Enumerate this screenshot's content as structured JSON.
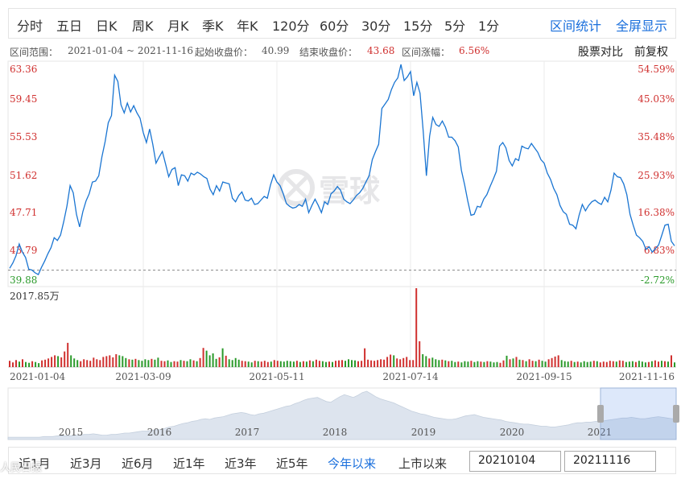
{
  "tabs": {
    "left": [
      "分时",
      "五日",
      "日K",
      "周K",
      "月K",
      "季K",
      "年K",
      "120分",
      "60分",
      "30分",
      "15分",
      "5分",
      "1分"
    ],
    "range_stats": "区间统计",
    "fullscreen": "全屏显示"
  },
  "info": {
    "range_label": "区间范围：",
    "range_value": "2021-01-04 ~ 2021-11-16",
    "start_label": "起始收盘价：",
    "start_value": "40.99",
    "end_label": "结束收盘价：",
    "end_value": "43.68",
    "change_label": "区间涨幅：",
    "change_value": "6.56%",
    "compare": "股票对比",
    "adjust": "前复权"
  },
  "watermark_text": "雪球",
  "bottom": {
    "ranges": [
      "近1月",
      "近3月",
      "近6月",
      "近1年",
      "近3年",
      "近5年",
      "今年以来",
      "上市以来"
    ],
    "active_range": "今年以来",
    "start_date": "20210104",
    "end_date": "20211116",
    "corner_watermark": "人民日报"
  },
  "colors": {
    "line": "#1a75d2",
    "up": "#d0302f",
    "down": "#2a9a2a",
    "accent": "#1a6fdc"
  },
  "chart_data": {
    "type": "line",
    "price": {
      "y_ticks": [
        "63.36",
        "59.45",
        "55.53",
        "51.62",
        "47.71",
        "43.79",
        "39.88"
      ],
      "y_range": [
        39.88,
        63.36
      ],
      "pct_ticks": [
        "54.59%",
        "45.03%",
        "35.48%",
        "25.93%",
        "16.38%",
        "6.83%",
        "-2.72%"
      ],
      "base_close": 40.99,
      "x_labels": [
        "2021-01-04",
        "2021-03-09",
        "2021-05-11",
        "2021-07-14",
        "2021-09-15",
        "2021-11-16"
      ],
      "values": [
        41.2,
        41.8,
        42.6,
        43.9,
        43.0,
        42.4,
        41.1,
        41.0,
        40.7,
        40.5,
        41.3,
        42.0,
        42.8,
        43.5,
        44.6,
        44.3,
        44.9,
        46.4,
        48.1,
        50.4,
        49.6,
        47.2,
        45.8,
        47.5,
        48.7,
        49.5,
        50.8,
        50.9,
        51.5,
        53.6,
        55.3,
        57.4,
        58.2,
        62.7,
        62.0,
        59.4,
        58.5,
        59.6,
        58.6,
        59.3,
        58.5,
        57.9,
        56.3,
        55.2,
        56.7,
        55.0,
        52.9,
        53.6,
        54.2,
        52.8,
        51.4,
        52.2,
        52.4,
        50.4,
        51.6,
        51.5,
        50.9,
        51.8,
        51.6,
        51.9,
        51.7,
        51.4,
        51.2,
        50.0,
        49.4,
        50.4,
        49.8,
        50.8,
        50.7,
        50.6,
        49.0,
        48.6,
        49.3,
        49.7,
        48.8,
        48.7,
        49.0,
        48.3,
        48.4,
        48.8,
        49.2,
        49.0,
        50.5,
        51.6,
        50.8,
        50.4,
        49.5,
        48.4,
        48.1,
        47.9,
        48.0,
        48.3,
        48.1,
        48.9,
        47.4,
        48.2,
        48.9,
        48.2,
        47.4,
        48.6,
        48.3,
        49.5,
        49.8,
        50.3,
        49.9,
        48.9,
        48.6,
        48.4,
        48.8,
        49.3,
        49.6,
        50.1,
        50.8,
        51.5,
        53.3,
        54.2,
        55.0,
        59.0,
        59.5,
        60.0,
        61.1,
        61.9,
        62.4,
        63.9,
        62.1,
        62.5,
        63.1,
        60.4,
        61.9,
        60.7,
        56.4,
        51.5,
        55.9,
        58.0,
        57.2,
        57.0,
        57.6,
        56.9,
        55.8,
        55.8,
        55.4,
        54.7,
        52.1,
        50.5,
        48.7,
        47.1,
        47.2,
        48.1,
        48.0,
        48.9,
        49.4,
        50.3,
        51.1,
        52.0,
        54.8,
        55.2,
        54.6,
        53.2,
        52.6,
        53.4,
        53.2,
        54.8,
        54.6,
        54.5,
        55.1,
        54.6,
        54.1,
        53.3,
        52.9,
        51.8,
        51.1,
        50.1,
        49.4,
        48.2,
        47.5,
        47.2,
        46.1,
        46.0,
        45.6,
        47.1,
        48.3,
        47.6,
        48.2,
        48.6,
        48.8,
        48.5,
        48.3,
        49.1,
        48.6,
        49.9,
        51.8,
        51.4,
        51.3,
        50.6,
        49.4,
        47.2,
        46.0,
        44.9,
        44.6,
        44.2,
        43.3,
        43.6,
        43.0,
        43.4,
        43.8,
        44.9,
        46.0,
        46.1,
        44.2,
        43.7
      ],
      "description_close_end": 43.68
    },
    "volume": {
      "max_label": "2017.85万",
      "max_value": 2017.85,
      "unit": "万",
      "values": [
        [
          160,
          1
        ],
        [
          120,
          1
        ],
        [
          180,
          1
        ],
        [
          140,
          0
        ],
        [
          200,
          1
        ],
        [
          130,
          0
        ],
        [
          110,
          0
        ],
        [
          150,
          1
        ],
        [
          130,
          0
        ],
        [
          100,
          0
        ],
        [
          170,
          1
        ],
        [
          190,
          1
        ],
        [
          220,
          1
        ],
        [
          260,
          1
        ],
        [
          300,
          1
        ],
        [
          280,
          0
        ],
        [
          250,
          1
        ],
        [
          400,
          1
        ],
        [
          620,
          1
        ],
        [
          300,
          0
        ],
        [
          220,
          0
        ],
        [
          180,
          0
        ],
        [
          150,
          1
        ],
        [
          200,
          1
        ],
        [
          180,
          1
        ],
        [
          160,
          1
        ],
        [
          240,
          1
        ],
        [
          200,
          1
        ],
        [
          180,
          1
        ],
        [
          260,
          1
        ],
        [
          280,
          1
        ],
        [
          300,
          1
        ],
        [
          250,
          1
        ],
        [
          330,
          1
        ],
        [
          300,
          0
        ],
        [
          280,
          0
        ],
        [
          230,
          0
        ],
        [
          200,
          1
        ],
        [
          190,
          0
        ],
        [
          210,
          1
        ],
        [
          180,
          0
        ],
        [
          160,
          0
        ],
        [
          200,
          0
        ],
        [
          180,
          0
        ],
        [
          210,
          1
        ],
        [
          190,
          0
        ],
        [
          240,
          0
        ],
        [
          160,
          1
        ],
        [
          150,
          1
        ],
        [
          170,
          0
        ],
        [
          130,
          0
        ],
        [
          150,
          1
        ],
        [
          140,
          1
        ],
        [
          180,
          0
        ],
        [
          160,
          1
        ],
        [
          150,
          0
        ],
        [
          200,
          0
        ],
        [
          170,
          1
        ],
        [
          150,
          0
        ],
        [
          230,
          1
        ],
        [
          490,
          1
        ],
        [
          420,
          0
        ],
        [
          300,
          0
        ],
        [
          350,
          0
        ],
        [
          210,
          0
        ],
        [
          250,
          1
        ],
        [
          480,
          0
        ],
        [
          290,
          1
        ],
        [
          200,
          0
        ],
        [
          180,
          0
        ],
        [
          230,
          0
        ],
        [
          190,
          0
        ],
        [
          160,
          1
        ],
        [
          150,
          1
        ],
        [
          140,
          0
        ],
        [
          120,
          0
        ],
        [
          160,
          1
        ],
        [
          150,
          0
        ],
        [
          140,
          1
        ],
        [
          160,
          1
        ],
        [
          130,
          1
        ],
        [
          140,
          0
        ],
        [
          180,
          1
        ],
        [
          160,
          1
        ],
        [
          150,
          0
        ],
        [
          140,
          0
        ],
        [
          160,
          0
        ],
        [
          150,
          0
        ],
        [
          140,
          0
        ],
        [
          160,
          1
        ],
        [
          130,
          0
        ],
        [
          150,
          1
        ],
        [
          140,
          0
        ],
        [
          170,
          1
        ],
        [
          150,
          0
        ],
        [
          190,
          1
        ],
        [
          160,
          1
        ],
        [
          150,
          0
        ],
        [
          130,
          0
        ],
        [
          140,
          1
        ],
        [
          130,
          0
        ],
        [
          160,
          1
        ],
        [
          170,
          1
        ],
        [
          180,
          1
        ],
        [
          160,
          0
        ],
        [
          200,
          0
        ],
        [
          180,
          0
        ],
        [
          170,
          0
        ],
        [
          150,
          1
        ],
        [
          160,
          1
        ],
        [
          480,
          1
        ],
        [
          190,
          1
        ],
        [
          170,
          1
        ],
        [
          160,
          1
        ],
        [
          180,
          1
        ],
        [
          200,
          1
        ],
        [
          190,
          1
        ],
        [
          260,
          1
        ],
        [
          320,
          1
        ],
        [
          300,
          0
        ],
        [
          220,
          1
        ],
        [
          200,
          1
        ],
        [
          230,
          1
        ],
        [
          260,
          1
        ],
        [
          180,
          1
        ],
        [
          180,
          1
        ],
        [
          2018,
          1
        ],
        [
          660,
          1
        ],
        [
          330,
          0
        ],
        [
          280,
          0
        ],
        [
          220,
          1
        ],
        [
          240,
          0
        ],
        [
          200,
          0
        ],
        [
          180,
          0
        ],
        [
          190,
          1
        ],
        [
          170,
          0
        ],
        [
          150,
          1
        ],
        [
          160,
          0
        ],
        [
          130,
          0
        ],
        [
          140,
          1
        ],
        [
          120,
          0
        ],
        [
          150,
          0
        ],
        [
          140,
          0
        ],
        [
          160,
          1
        ],
        [
          130,
          0
        ],
        [
          150,
          0
        ],
        [
          140,
          1
        ],
        [
          130,
          0
        ],
        [
          150,
          1
        ],
        [
          140,
          0
        ],
        [
          120,
          0
        ],
        [
          130,
          0
        ],
        [
          110,
          1
        ],
        [
          170,
          1
        ],
        [
          290,
          0
        ],
        [
          200,
          1
        ],
        [
          220,
          0
        ],
        [
          260,
          1
        ],
        [
          190,
          0
        ],
        [
          180,
          1
        ],
        [
          150,
          0
        ],
        [
          200,
          1
        ],
        [
          160,
          1
        ],
        [
          150,
          0
        ],
        [
          190,
          1
        ],
        [
          160,
          0
        ],
        [
          140,
          0
        ],
        [
          200,
          1
        ],
        [
          230,
          1
        ],
        [
          270,
          1
        ],
        [
          300,
          1
        ],
        [
          180,
          0
        ],
        [
          150,
          0
        ],
        [
          140,
          0
        ],
        [
          160,
          1
        ],
        [
          130,
          0
        ],
        [
          140,
          1
        ],
        [
          120,
          0
        ],
        [
          150,
          0
        ],
        [
          130,
          0
        ],
        [
          140,
          0
        ],
        [
          160,
          1
        ],
        [
          150,
          0
        ],
        [
          120,
          1
        ],
        [
          140,
          1
        ],
        [
          130,
          1
        ],
        [
          160,
          1
        ],
        [
          150,
          1
        ],
        [
          140,
          0
        ],
        [
          170,
          1
        ],
        [
          160,
          1
        ],
        [
          130,
          0
        ],
        [
          140,
          0
        ],
        [
          150,
          0
        ],
        [
          130,
          1
        ],
        [
          160,
          0
        ],
        [
          140,
          0
        ],
        [
          120,
          0
        ],
        [
          130,
          1
        ],
        [
          150,
          0
        ],
        [
          170,
          1
        ],
        [
          140,
          1
        ],
        [
          160,
          0
        ],
        [
          150,
          1
        ],
        [
          140,
          0
        ],
        [
          300,
          1
        ],
        [
          120,
          0
        ]
      ]
    },
    "navigator": {
      "year_labels": [
        "2015",
        "2016",
        "2017",
        "2018",
        "2019",
        "2020",
        "2021"
      ],
      "values": [
        1,
        1,
        1,
        1,
        1,
        1,
        1,
        1,
        2,
        2,
        2,
        3,
        3,
        3,
        3,
        4,
        4,
        5,
        5,
        6,
        5,
        4,
        4,
        5,
        5,
        6,
        7,
        7,
        8,
        9,
        10,
        10,
        11,
        12,
        12,
        14,
        16,
        17,
        19,
        21,
        22,
        24,
        25,
        27,
        28,
        27,
        29,
        30,
        31,
        33,
        35,
        36,
        37,
        36,
        34,
        33,
        35,
        36,
        38,
        40,
        42,
        44,
        46,
        47,
        50,
        52,
        55,
        57,
        58,
        59,
        56,
        53,
        52,
        56,
        60,
        63,
        61,
        59,
        62,
        66,
        68,
        64,
        60,
        57,
        55,
        53,
        51,
        48,
        45,
        42,
        39,
        37,
        35,
        34,
        32,
        30,
        29,
        28,
        27,
        27,
        28,
        30,
        32,
        33,
        34,
        32,
        30,
        29,
        28,
        27,
        26,
        24,
        23,
        22,
        21,
        20,
        20,
        19,
        18,
        17,
        17,
        16,
        16,
        17,
        18,
        19,
        21,
        22,
        22,
        23,
        23,
        24,
        24,
        25,
        26,
        27,
        28,
        29,
        29,
        30,
        29,
        28,
        28,
        29,
        30,
        31,
        30,
        29,
        28,
        28
      ],
      "selected_from_year": "2021"
    }
  }
}
